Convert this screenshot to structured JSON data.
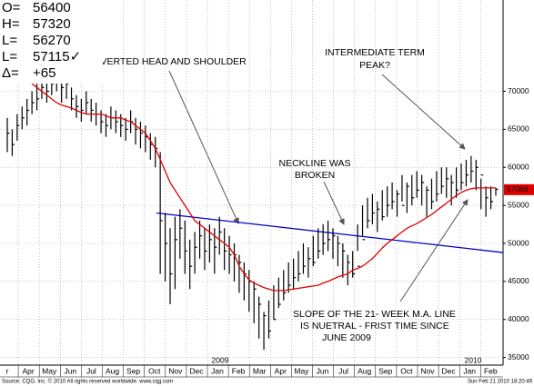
{
  "chart_data": {
    "type": "ohlc",
    "quote": [
      {
        "label": "O=",
        "value": "56400"
      },
      {
        "label": "H=",
        "value": "57320"
      },
      {
        "label": "L=",
        "value": "56270"
      },
      {
        "label": "L=",
        "value": "57115✓"
      },
      {
        "label": "Δ=",
        "value": "+65"
      }
    ],
    "bar_color": "#000000",
    "high": [
      66500,
      65000,
      67000,
      68000,
      69000,
      70000,
      71000,
      72500,
      71500,
      72500,
      73000,
      72000,
      72000,
      70500,
      69500,
      69000,
      70000,
      69000,
      68500,
      67500,
      67000,
      68000,
      67500,
      67000,
      66500,
      67500,
      66500,
      66000,
      65500,
      64500,
      64000,
      62000,
      54000,
      52000,
      53500,
      54500,
      53000,
      50500,
      51500,
      53000,
      52000,
      52500,
      52000,
      53500,
      52000,
      51000,
      50000,
      48500,
      47500,
      46500,
      45000,
      43000,
      41000,
      42500,
      44500,
      45500,
      46500,
      47500,
      48000,
      49000,
      50000,
      49500,
      51000,
      52000,
      52500,
      53000,
      52000,
      51000,
      50000,
      48500,
      49000,
      52500,
      55000,
      56000,
      56500,
      55500,
      57000,
      57500,
      58000,
      57000,
      59000,
      58000,
      59000,
      59500,
      59000,
      57500,
      58500,
      59500,
      60000,
      60000,
      59000,
      60000,
      60500,
      61000,
      61500,
      61000,
      58500,
      57500,
      57500,
      57320
    ],
    "low": [
      62000,
      61500,
      63500,
      65000,
      65500,
      67000,
      67500,
      69000,
      68500,
      69500,
      70000,
      68500,
      69000,
      67500,
      66500,
      66000,
      67000,
      66000,
      65500,
      64500,
      64000,
      65000,
      64500,
      64000,
      63500,
      64500,
      63000,
      62500,
      62000,
      61000,
      60000,
      46000,
      45000,
      42000,
      44000,
      48000,
      46000,
      44000,
      46000,
      48000,
      46500,
      47500,
      46000,
      48500,
      46500,
      46000,
      45000,
      43500,
      42500,
      41000,
      39500,
      37500,
      36000,
      37500,
      40000,
      41500,
      42500,
      43500,
      44000,
      45000,
      46000,
      45500,
      47000,
      48000,
      48500,
      49000,
      48000,
      47000,
      45500,
      44500,
      45500,
      49000,
      51000,
      52000,
      52500,
      51500,
      53000,
      53500,
      54500,
      53500,
      55500,
      54000,
      55000,
      56000,
      55000,
      53500,
      54500,
      55500,
      56500,
      56000,
      55000,
      56000,
      57000,
      57500,
      58000,
      57000,
      54500,
      53500,
      54500,
      56270
    ],
    "close": [
      64500,
      63000,
      65500,
      66500,
      67500,
      68500,
      69000,
      70500,
      70000,
      71000,
      71500,
      70500,
      71000,
      69000,
      68000,
      67500,
      68500,
      67500,
      67000,
      66000,
      65500,
      66500,
      66000,
      65500,
      65000,
      66000,
      65000,
      64500,
      64000,
      63000,
      62500,
      53000,
      50000,
      46000,
      50500,
      52000,
      49000,
      47000,
      49500,
      51000,
      49000,
      50500,
      49500,
      51500,
      49000,
      48500,
      48500,
      47500,
      46000,
      45000,
      44000,
      42000,
      40500,
      38500,
      40000,
      42000,
      43500,
      44500,
      45500,
      46000,
      47000,
      48000,
      47500,
      49000,
      50000,
      50500,
      51000,
      50000,
      49000,
      47500,
      46000,
      47000,
      50500,
      53000,
      54000,
      54500,
      53500,
      55000,
      55500,
      56500,
      55000,
      57500,
      56000,
      57000,
      58000,
      57000,
      55500,
      56500,
      57500,
      58500,
      58000,
      57000,
      58000,
      59000,
      59500,
      60000,
      59000,
      56000,
      55500,
      57115
    ],
    "ma_color": "#e00000",
    "ma_values": [
      null,
      null,
      null,
      null,
      null,
      71000,
      70500,
      70000,
      69500,
      69000,
      68500,
      68200,
      68000,
      67800,
      67500,
      67200,
      67000,
      67000,
      67000,
      67000,
      66800,
      66500,
      66500,
      66500,
      66200,
      66000,
      65500,
      65000,
      64500,
      63500,
      62500,
      61000,
      59500,
      58000,
      57000,
      56000,
      55000,
      54000,
      53000,
      52500,
      52000,
      51500,
      51000,
      50500,
      50000,
      49500,
      48500,
      47000,
      46000,
      45200,
      44800,
      44500,
      44200,
      44000,
      43800,
      43800,
      43800,
      43900,
      44000,
      44100,
      44200,
      44300,
      44400,
      44500,
      44800,
      45000,
      45300,
      45600,
      45800,
      46000,
      46500,
      46700,
      47000,
      47500,
      48000,
      48700,
      49400,
      50000,
      50500,
      51000,
      51500,
      52000,
      52300,
      52600,
      53000,
      53400,
      53800,
      54300,
      54800,
      55300,
      55800,
      56300,
      56700,
      57000,
      57200,
      57300,
      57300,
      57300,
      57300,
      57300
    ],
    "trendline": {
      "color": "#0000cc",
      "values": [
        54000,
        48800
      ]
    },
    "last_price": 57066,
    "last_price_color": "#e00000",
    "ylim": [
      34000,
      82000
    ],
    "yticks": [
      35000,
      40000,
      45000,
      50000,
      55000,
      60000,
      65000,
      70000
    ],
    "grid": true,
    "x_labels": [
      "r",
      "Apr",
      "May",
      "Jun",
      "Jul",
      "Aug",
      "Sep",
      "Oct",
      "Nov",
      "Dec",
      "Jan",
      "Feb",
      "Mar",
      "Apr",
      "May",
      "Jun",
      "Jul",
      "Aug",
      "Sep",
      "Oct",
      "Nov",
      "Dec",
      "Jan",
      "Feb"
    ],
    "year_labels": [
      "2009",
      "2010"
    ],
    "annotations": [
      {
        "lines": [
          "INVERTED HEAD AND SHOULDER"
        ]
      },
      {
        "lines": [
          "INTERMEDIATE TERM",
          "PEAK?"
        ]
      },
      {
        "lines": [
          "NECKLINE WAS",
          "BROKEN"
        ]
      },
      {
        "lines": [
          "SLOPE OF THE 21- WEEK M.A. LINE",
          "IS NUETRAL - FRIST TIME SINCE",
          "JUNE 2009"
        ]
      }
    ],
    "source": "Source: CQG, Inc. © 2010 All rights reserved worldwide. www.cqg.com",
    "timestamp": "Sun Feb 21 2010 18:20:49"
  }
}
